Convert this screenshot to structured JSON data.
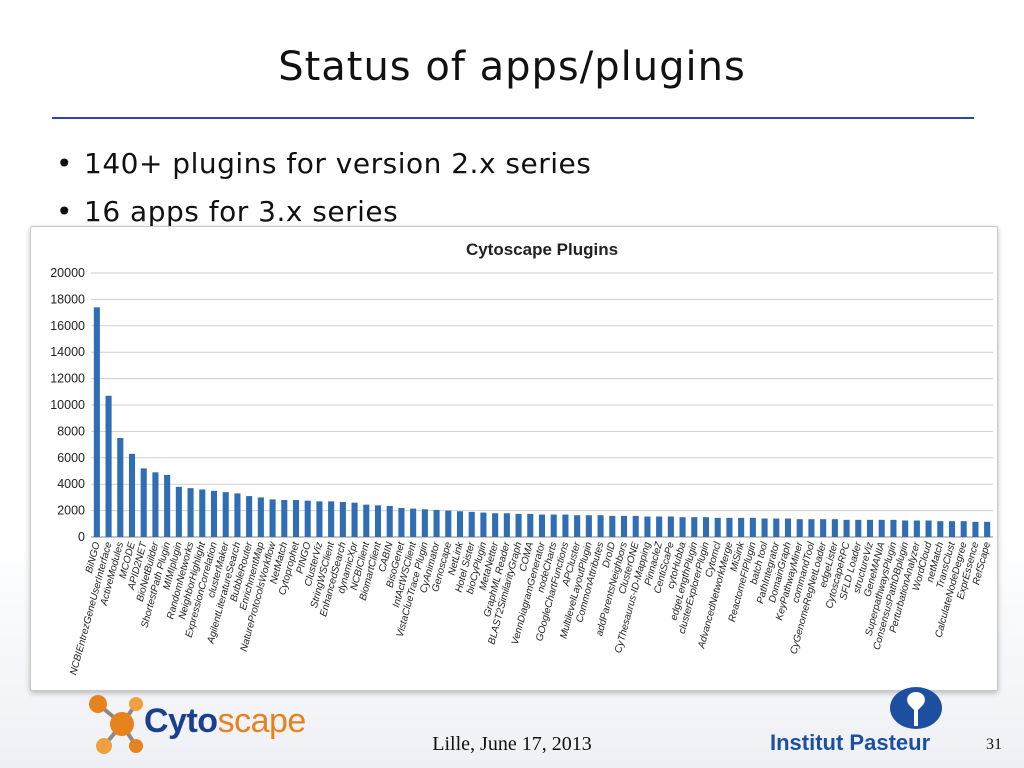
{
  "slide": {
    "title": "Status of apps/plugins",
    "bullets": [
      "140+ plugins for version 2.x series",
      "16 apps for 3.x series"
    ],
    "footer_date": "Lille, June 17, 2013",
    "page_number": "31"
  },
  "logos": {
    "left": {
      "part1": "Cyto",
      "part2": "scape"
    },
    "right": {
      "text": "Institut Pasteur"
    }
  },
  "colors": {
    "bar": "#2f6db4",
    "title_rule": "#2a44b8",
    "logo_orange": "#e8821e",
    "logo_blue": "#1b3f8f",
    "pasteur_blue": "#1d4fa0"
  },
  "chart_data": {
    "type": "bar",
    "title": "Cytoscape Plugins",
    "xlabel": "",
    "ylabel": "",
    "ylim": [
      0,
      20000
    ],
    "yticks": [
      0,
      2000,
      4000,
      6000,
      8000,
      10000,
      12000,
      14000,
      16000,
      18000,
      20000
    ],
    "grid": true,
    "categories": [
      "BiNGO",
      "NCBIEntrezGeneUserInterface",
      "ActiveModules",
      "MCODE",
      "APID2NET",
      "BioNetBuilder",
      "ShortestPath Plugin",
      "MIMIplugin",
      "RandomNetworks",
      "NeighborHighlight",
      "ExpressionCorrelation",
      "clusterMaker",
      "AgilentLiteratureSearch",
      "BubbleRouter",
      "EnrichmentMap",
      "NatureProtocolsWorkflow",
      "NetMatch",
      "Cytoprophet",
      "PINGO",
      "ClusterViz",
      "StringWSClient",
      "EnhancedSearch",
      "dynamicXpr",
      "NCBIClient",
      "BiomartClient",
      "CABIN",
      "BisoGenet",
      "IntActWSClient",
      "VistaClueTrace Plugin",
      "CyAnimator",
      "Genoscape",
      "NetLink",
      "Hotel Sister",
      "bioCyPlugin",
      "MetaNetter",
      "GraphML Reader",
      "BLAST2SimilarityGraph",
      "COMA",
      "VennDiagramGenerator",
      "nodeCharts",
      "GOogleChartFunctions",
      "APCluster",
      "MultilevelLayoutPlugin",
      "CommonAttributes",
      "DroID",
      "addParentsNeighbors",
      "ClusterONE",
      "CyThesaurus-ID-Mapping",
      "PinnacleZ",
      "CentiScaPe",
      "cytoHubba",
      "edgeLengthPlugin",
      "clusterExplorerPlugin",
      "Cytomcl",
      "AdvancedNetworkMerge",
      "MiSink",
      "ReactomeFIPlugin",
      "batch tool",
      "PathIntegrator",
      "DomainGraph",
      "KeyPathwayMiner",
      "commandTool",
      "CyGenomeRegNetLoader",
      "edgeLister",
      "CytoscapeRPC",
      "SFLD Loader",
      "structureViz",
      "GeneMANIA",
      "SuperpathwaysPlugin",
      "ConsensusPathDBplugin",
      "PerturbationAnalyzer",
      "WordCloud",
      "netMatch",
      "TransClust",
      "CalculateNodeDegree",
      "ExprEssence",
      "RefScape"
    ],
    "values": [
      17400,
      10700,
      7500,
      6300,
      5200,
      4900,
      4700,
      3800,
      3700,
      3600,
      3500,
      3400,
      3300,
      3100,
      3000,
      2850,
      2800,
      2800,
      2750,
      2700,
      2700,
      2650,
      2600,
      2450,
      2400,
      2350,
      2200,
      2150,
      2100,
      2050,
      2000,
      1950,
      1900,
      1850,
      1800,
      1800,
      1750,
      1750,
      1700,
      1700,
      1700,
      1650,
      1650,
      1650,
      1600,
      1600,
      1600,
      1550,
      1550,
      1550,
      1500,
      1500,
      1500,
      1450,
      1450,
      1450,
      1450,
      1400,
      1400,
      1400,
      1350,
      1350,
      1350,
      1350,
      1300,
      1300,
      1300,
      1300,
      1300,
      1250,
      1250,
      1250,
      1200,
      1200,
      1200,
      1150,
      1150
    ]
  }
}
